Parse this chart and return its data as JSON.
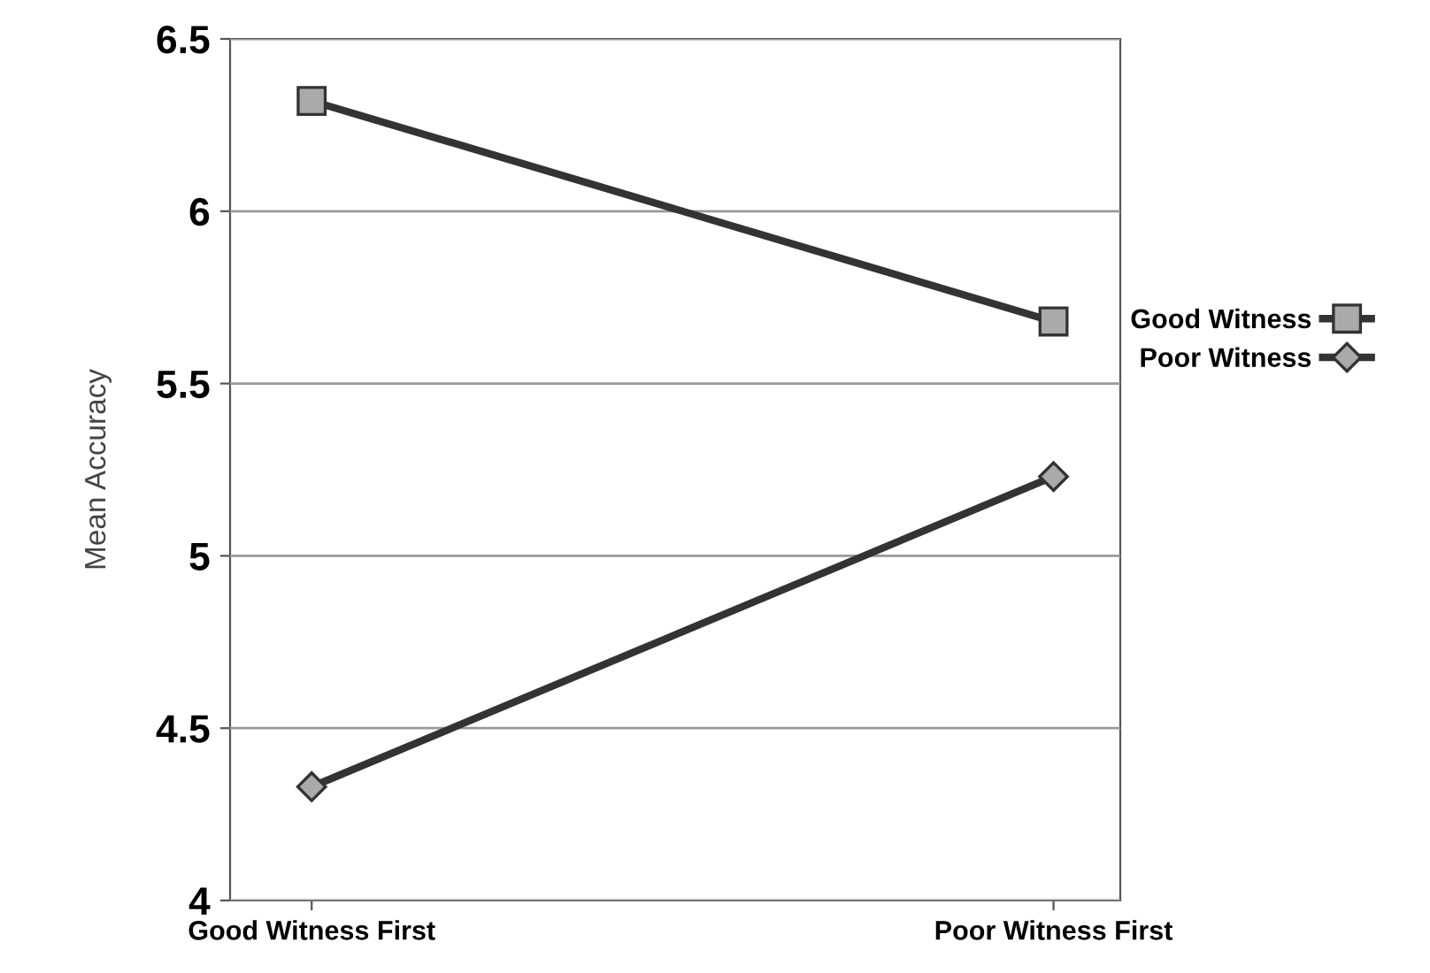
{
  "chart_data": {
    "type": "line",
    "ylabel": "Mean Accuracy",
    "categories": [
      "Good Witness First",
      "Poor Witness First"
    ],
    "series": [
      {
        "name": "Good Witness",
        "color": "#333333",
        "marker": "square",
        "values": [
          6.32,
          5.68
        ]
      },
      {
        "name": "Poor Witness",
        "color": "#333333",
        "marker": "diamond",
        "values": [
          4.33,
          5.23
        ]
      }
    ],
    "ylim": [
      4,
      6.5
    ],
    "yticks": [
      4,
      4.5,
      5,
      5.5,
      6,
      6.5
    ],
    "grid": "y",
    "legend": "right",
    "line_style": "solid"
  }
}
